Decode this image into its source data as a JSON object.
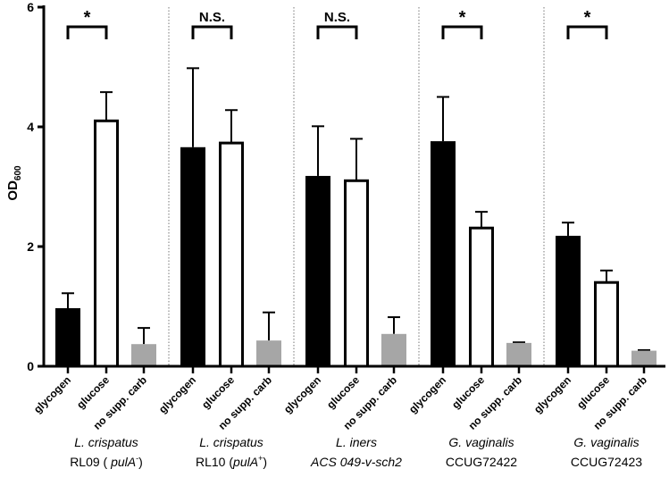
{
  "chart_data": {
    "type": "bar",
    "ylabel": "OD",
    "ylabel_sub": "600",
    "ylim": [
      0,
      6
    ],
    "yticks": [
      "0",
      "2",
      "4",
      "6"
    ],
    "categories": [
      "glycogen",
      "glucose",
      "no supp. carb"
    ],
    "fill_colors": [
      "#000000",
      "#ffffff",
      "#a6a6a6"
    ],
    "groups": [
      {
        "line1": "L. crispatus",
        "line2_pre": "RL09 ( ",
        "line2_it": "pulA",
        "line2_sup": "-",
        "line2_post": ")",
        "line2_italic": false,
        "values": [
          0.97,
          4.1,
          0.37
        ],
        "errors": [
          0.25,
          0.48,
          0.27
        ],
        "significance": "*"
      },
      {
        "line1": "L. crispatus",
        "line2_pre": "RL10 (",
        "line2_it": "pulA",
        "line2_sup": "+",
        "line2_post": ")",
        "line2_italic": false,
        "values": [
          3.66,
          3.73,
          0.43
        ],
        "errors": [
          1.32,
          0.55,
          0.47
        ],
        "significance": "N.S."
      },
      {
        "line1": "L. iners",
        "line2_pre": "ACS 049-v-sch2",
        "line2_it": "",
        "line2_sup": "",
        "line2_post": "",
        "line2_italic": true,
        "values": [
          3.18,
          3.1,
          0.54
        ],
        "errors": [
          0.83,
          0.7,
          0.28
        ],
        "significance": "N.S."
      },
      {
        "line1": "G. vaginalis",
        "line2_pre": "CCUG72422",
        "line2_it": "",
        "line2_sup": "",
        "line2_post": "",
        "line2_italic": false,
        "values": [
          3.76,
          2.31,
          0.39
        ],
        "errors": [
          0.74,
          0.27,
          0.01
        ],
        "significance": "*"
      },
      {
        "line1": "G. vaginalis",
        "line2_pre": "CCUG72423",
        "line2_it": "",
        "line2_sup": "",
        "line2_post": "",
        "line2_italic": false,
        "values": [
          2.18,
          1.4,
          0.26
        ],
        "errors": [
          0.22,
          0.2,
          0.01
        ],
        "significance": "*"
      }
    ]
  }
}
